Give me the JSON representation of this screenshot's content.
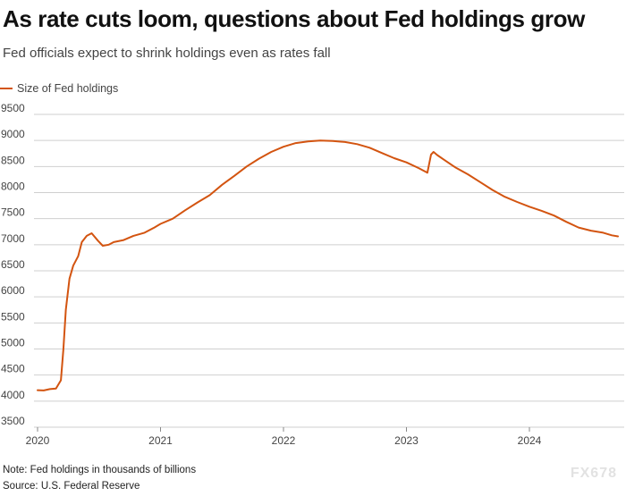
{
  "chart_data": {
    "type": "line",
    "title": "As rate cuts loom, questions about Fed holdings grow",
    "subtitle": "Fed officials expect to shrink holdings even as rates fall",
    "xlabel": "",
    "ylabel": "",
    "ylim": [
      3500,
      9500
    ],
    "yticks": [
      3500,
      4000,
      4500,
      5000,
      5500,
      6000,
      6500,
      7000,
      7500,
      8000,
      8500,
      9000,
      9500
    ],
    "xticks": [
      "2020",
      "2021",
      "2022",
      "2023",
      "2024"
    ],
    "grid": true,
    "legend_position": "top-left",
    "series": [
      {
        "name": "Size of Fed holdings",
        "color": "#d35410",
        "points": [
          [
            2020.0,
            4210
          ],
          [
            2020.05,
            4205
          ],
          [
            2020.1,
            4230
          ],
          [
            2020.15,
            4240
          ],
          [
            2020.19,
            4400
          ],
          [
            2020.21,
            5000
          ],
          [
            2020.23,
            5750
          ],
          [
            2020.26,
            6350
          ],
          [
            2020.29,
            6600
          ],
          [
            2020.33,
            6780
          ],
          [
            2020.36,
            7050
          ],
          [
            2020.4,
            7170
          ],
          [
            2020.44,
            7220
          ],
          [
            2020.49,
            7080
          ],
          [
            2020.53,
            6980
          ],
          [
            2020.58,
            7000
          ],
          [
            2020.62,
            7050
          ],
          [
            2020.7,
            7090
          ],
          [
            2020.78,
            7170
          ],
          [
            2020.87,
            7230
          ],
          [
            2020.95,
            7330
          ],
          [
            2021.0,
            7400
          ],
          [
            2021.1,
            7500
          ],
          [
            2021.2,
            7660
          ],
          [
            2021.3,
            7810
          ],
          [
            2021.4,
            7950
          ],
          [
            2021.5,
            8150
          ],
          [
            2021.6,
            8320
          ],
          [
            2021.7,
            8500
          ],
          [
            2021.8,
            8650
          ],
          [
            2021.9,
            8780
          ],
          [
            2022.0,
            8880
          ],
          [
            2022.1,
            8950
          ],
          [
            2022.2,
            8980
          ],
          [
            2022.3,
            9000
          ],
          [
            2022.4,
            8990
          ],
          [
            2022.5,
            8970
          ],
          [
            2022.6,
            8930
          ],
          [
            2022.7,
            8860
          ],
          [
            2022.8,
            8760
          ],
          [
            2022.9,
            8660
          ],
          [
            2023.0,
            8580
          ],
          [
            2023.1,
            8470
          ],
          [
            2023.17,
            8380
          ],
          [
            2023.2,
            8730
          ],
          [
            2023.22,
            8780
          ],
          [
            2023.25,
            8720
          ],
          [
            2023.3,
            8640
          ],
          [
            2023.4,
            8480
          ],
          [
            2023.5,
            8350
          ],
          [
            2023.6,
            8200
          ],
          [
            2023.7,
            8050
          ],
          [
            2023.8,
            7920
          ],
          [
            2023.9,
            7820
          ],
          [
            2024.0,
            7730
          ],
          [
            2024.1,
            7650
          ],
          [
            2024.2,
            7560
          ],
          [
            2024.3,
            7440
          ],
          [
            2024.4,
            7330
          ],
          [
            2024.5,
            7270
          ],
          [
            2024.6,
            7230
          ],
          [
            2024.67,
            7180
          ],
          [
            2024.72,
            7160
          ]
        ]
      }
    ],
    "note": "Note: Fed holdings in thousands of billions",
    "source": "Source: U.S. Federal Reserve"
  },
  "watermark": "FX678"
}
